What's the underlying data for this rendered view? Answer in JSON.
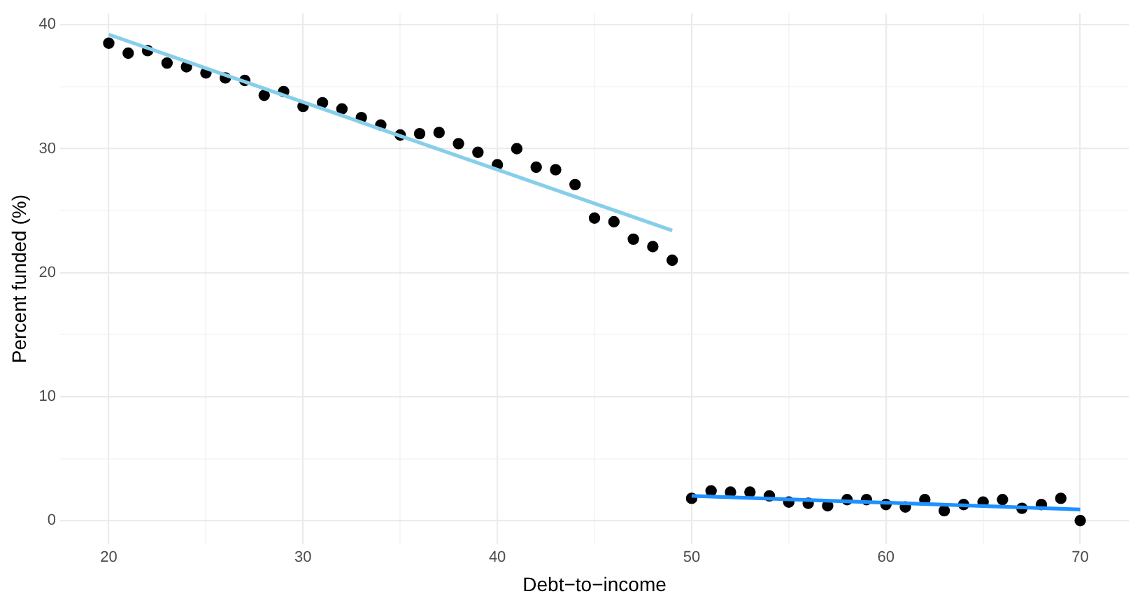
{
  "chart_data": {
    "type": "scatter",
    "xlabel": "Debt−to−income",
    "ylabel": "Percent funded (%)",
    "xlim": [
      17.5,
      72.5
    ],
    "ylim": [
      -1.9,
      40.9
    ],
    "xticks": [
      20,
      {
        "value": 25,
        "label": null
      },
      30,
      {
        "value": 35,
        "label": null
      },
      40,
      {
        "value": 45,
        "label": null
      },
      50,
      {
        "value": 55,
        "label": null
      },
      60,
      {
        "value": 65,
        "label": null
      },
      70
    ],
    "yticks": [
      0,
      {
        "value": 5,
        "label": null
      },
      10,
      {
        "value": 15,
        "label": null
      },
      20,
      {
        "value": 25,
        "label": null
      },
      30,
      {
        "value": 35,
        "label": null
      },
      40
    ],
    "grid": true,
    "legend": false,
    "marker": "circle",
    "series": [
      {
        "color": "#000000",
        "x": [
          20,
          21,
          22,
          23,
          24,
          25,
          26,
          27,
          28,
          29,
          30,
          31,
          32,
          33,
          34,
          35,
          36,
          37,
          38,
          39,
          40,
          41,
          42,
          43,
          44,
          45,
          46,
          47,
          48,
          49,
          50,
          51,
          52,
          53,
          54,
          55,
          56,
          57,
          58,
          59,
          60,
          61,
          62,
          63,
          64,
          65,
          66,
          67,
          68,
          69,
          70
        ],
        "values": [
          38.5,
          37.7,
          37.9,
          36.9,
          36.6,
          36.1,
          35.7,
          35.5,
          34.3,
          34.6,
          33.4,
          33.7,
          33.2,
          32.5,
          31.9,
          31.1,
          31.2,
          31.3,
          30.4,
          29.7,
          28.7,
          30.0,
          28.5,
          28.3,
          27.1,
          24.4,
          24.1,
          22.7,
          22.1,
          21.0,
          1.8,
          2.4,
          2.3,
          2.3,
          2.0,
          1.5,
          1.4,
          1.2,
          1.7,
          1.7,
          1.3,
          1.1,
          1.7,
          0.8,
          1.3,
          1.5,
          1.7,
          1.0,
          1.3,
          1.8,
          0.0
        ]
      },
      {
        "type": "line",
        "color": "#87ceeb",
        "marker": "none",
        "x": [
          20,
          49
        ],
        "values": [
          39.2,
          23.4
        ]
      },
      {
        "type": "line",
        "color": "#1e90ff",
        "marker": "none",
        "x": [
          50,
          70
        ],
        "values": [
          2.0,
          0.9
        ]
      }
    ]
  }
}
